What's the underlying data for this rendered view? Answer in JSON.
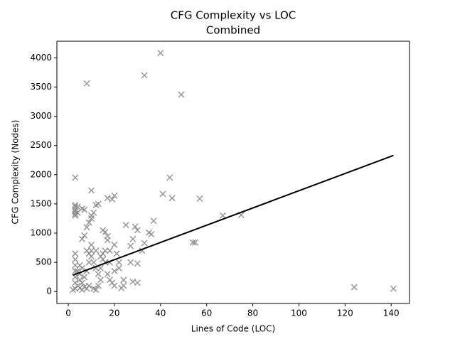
{
  "chart_data": {
    "type": "scatter",
    "title": "CFG Complexity vs LOC",
    "subtitle": "Combined",
    "x_label": "Lines of Code (LOC)",
    "y_label": "CFG Complexity (Nodes)",
    "xlim": [
      -4.95,
      147.95
    ],
    "ylim": [
      -204,
      4284
    ],
    "xticks": [
      0,
      20,
      40,
      60,
      80,
      100,
      120,
      140
    ],
    "yticks": [
      0,
      500,
      1000,
      1500,
      2000,
      2500,
      3000,
      3500,
      4000
    ],
    "grid": false,
    "series": [
      {
        "color": "#8c8c8c",
        "marker": "x",
        "x": [
          40,
          33,
          8,
          49,
          3,
          44,
          10,
          17,
          19,
          20,
          45,
          57,
          41,
          67,
          75,
          124,
          141,
          54,
          55,
          37,
          35,
          36,
          28,
          29,
          30,
          25,
          32,
          27,
          33,
          27,
          30,
          28,
          30,
          24,
          23,
          24,
          22,
          20,
          21,
          18,
          17,
          17,
          16,
          15,
          13,
          12,
          11,
          10,
          10,
          9,
          8,
          7,
          6,
          7,
          6,
          3,
          3,
          3,
          3,
          3,
          3,
          4,
          4,
          3,
          3,
          3,
          3,
          3,
          3,
          3,
          2,
          4,
          5,
          5,
          6,
          6,
          7,
          8,
          8,
          9,
          10,
          10,
          11,
          12,
          12,
          13,
          14,
          15,
          16,
          17,
          18,
          19,
          20,
          11,
          12,
          13,
          14,
          9,
          8,
          7,
          6,
          5,
          4,
          5,
          9,
          10,
          15,
          16,
          18,
          20,
          22,
          14
        ],
        "values": [
          4080,
          3700,
          3560,
          3370,
          1950,
          1950,
          1730,
          1600,
          1580,
          1640,
          1600,
          1590,
          1670,
          1300,
          1310,
          75,
          50,
          840,
          840,
          1210,
          1010,
          980,
          900,
          1110,
          1050,
          1140,
          700,
          780,
          830,
          500,
          480,
          170,
          150,
          200,
          60,
          100,
          500,
          800,
          650,
          700,
          950,
          880,
          1020,
          1050,
          1500,
          1480,
          1350,
          1300,
          1250,
          1180,
          1100,
          960,
          900,
          1400,
          1420,
          1480,
          1450,
          1400,
          1370,
          1330,
          1300,
          1450,
          1350,
          650,
          550,
          450,
          350,
          250,
          150,
          50,
          30,
          100,
          200,
          300,
          400,
          150,
          250,
          350,
          700,
          650,
          800,
          600,
          500,
          700,
          400,
          300,
          600,
          650,
          500,
          300,
          200,
          150,
          100,
          50,
          30,
          100,
          200,
          100,
          50,
          80,
          30,
          60,
          350,
          450,
          500,
          700,
          550,
          700,
          500,
          350,
          400,
          400
        ]
      },
      {
        "type": "line",
        "color": "#000000",
        "x": [
          2,
          141
        ],
        "values": [
          280,
          2330
        ]
      }
    ]
  }
}
